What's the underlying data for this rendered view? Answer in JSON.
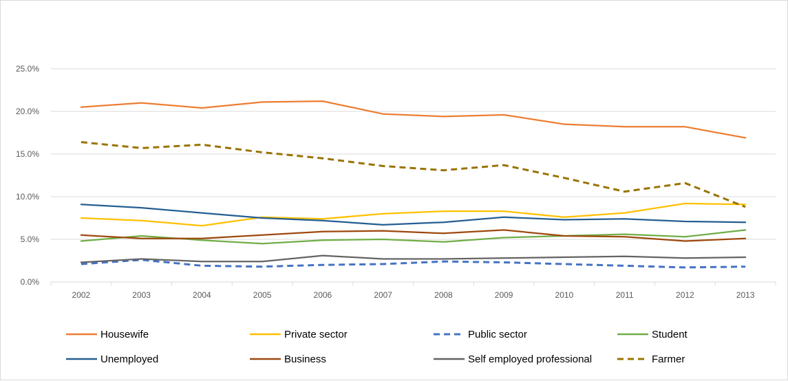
{
  "chart_data": {
    "type": "line",
    "title": "",
    "xlabel": "",
    "ylabel": "",
    "x": [
      "2002",
      "2003",
      "2004",
      "2005",
      "2006",
      "2007",
      "2008",
      "2009",
      "2010",
      "2011",
      "2012",
      "2013"
    ],
    "ylim": [
      0,
      25
    ],
    "yticks": [
      0,
      5,
      10,
      15,
      20,
      25
    ],
    "ytick_labels": [
      "0.0%",
      "5.0%",
      "10.0%",
      "15.0%",
      "20.0%",
      "25.0%"
    ],
    "grid": true,
    "legend_position": "bottom",
    "series": [
      {
        "name": "Housewife",
        "color": "#ED7D31",
        "dashed": false,
        "values": [
          20.5,
          21.0,
          20.4,
          21.1,
          21.2,
          19.7,
          19.4,
          19.6,
          18.5,
          18.2,
          18.2,
          16.9
        ]
      },
      {
        "name": "Private sector",
        "color": "#FFC000",
        "dashed": false,
        "values": [
          7.5,
          7.2,
          6.6,
          7.6,
          7.4,
          8.0,
          8.3,
          8.3,
          7.6,
          8.1,
          9.2,
          9.1
        ]
      },
      {
        "name": "Public sector",
        "color": "#4472C4",
        "dashed": true,
        "values": [
          2.1,
          2.6,
          1.9,
          1.8,
          2.0,
          2.1,
          2.4,
          2.3,
          2.1,
          1.9,
          1.7,
          1.8
        ]
      },
      {
        "name": "Student",
        "color": "#70AD47",
        "dashed": false,
        "values": [
          4.8,
          5.4,
          4.9,
          4.5,
          4.9,
          5.0,
          4.7,
          5.2,
          5.4,
          5.6,
          5.3,
          6.1
        ]
      },
      {
        "name": "Unemployed",
        "color": "#255E91",
        "dashed": false,
        "values": [
          9.1,
          8.7,
          8.1,
          7.5,
          7.2,
          6.7,
          7.0,
          7.6,
          7.3,
          7.4,
          7.1,
          7.0
        ]
      },
      {
        "name": "Business",
        "color": "#9E480E",
        "dashed": false,
        "values": [
          5.5,
          5.1,
          5.1,
          5.5,
          5.9,
          6.0,
          5.7,
          6.1,
          5.4,
          5.3,
          4.8,
          5.1
        ]
      },
      {
        "name": "Self employed professional",
        "color": "#636363",
        "dashed": false,
        "values": [
          2.3,
          2.7,
          2.4,
          2.4,
          3.1,
          2.7,
          2.7,
          2.8,
          2.9,
          3.0,
          2.8,
          2.9
        ]
      },
      {
        "name": "Farmer",
        "color": "#997300",
        "dashed": true,
        "values": [
          16.4,
          15.7,
          16.1,
          15.2,
          14.5,
          13.6,
          13.1,
          13.7,
          12.2,
          10.6,
          11.6,
          8.8
        ]
      }
    ]
  }
}
